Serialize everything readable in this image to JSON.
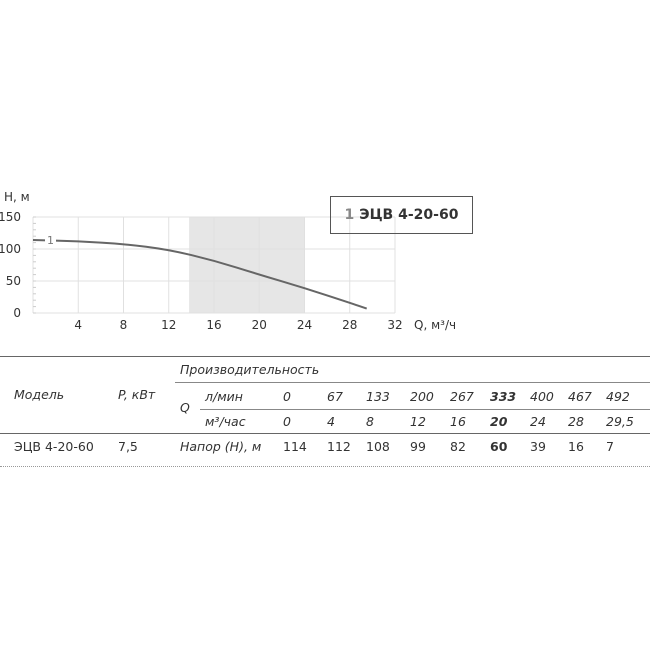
{
  "chart_data": {
    "type": "line",
    "ylabel": "H, м",
    "xlabel": "Q, м³/ч",
    "xlim": [
      0,
      32
    ],
    "ylim": [
      0,
      150
    ],
    "xticks": [
      4,
      8,
      12,
      16,
      20,
      24,
      28,
      32
    ],
    "yticks": [
      0,
      50,
      100,
      150
    ],
    "grid": true,
    "shaded_region": [
      13.8,
      24
    ],
    "series": [
      {
        "name": "ЭЦВ 4-20-60",
        "label": "1",
        "x": [
          0,
          4,
          8,
          12,
          16,
          20,
          24,
          28,
          29.5
        ],
        "y": [
          114,
          112,
          108,
          99,
          82,
          60,
          39,
          16,
          7
        ]
      }
    ],
    "legend": {
      "number": "1",
      "text": "ЭЦВ 4-20-60",
      "placement": "top-right"
    },
    "colors": {
      "curve": "#666666",
      "shade": "#e6e6e6",
      "grid": "#e0e0e0"
    }
  },
  "table": {
    "model_header": "Модель",
    "power_header": "P, кВт",
    "perf_header": "Производительность",
    "q_label": "Q",
    "lmin_label": "л/мин",
    "m3_label": "м³/час",
    "head_label": "Напор (H), м",
    "lmin": [
      "0",
      "67",
      "133",
      "200",
      "267",
      "333",
      "400",
      "467",
      "492"
    ],
    "m3": [
      "0",
      "4",
      "8",
      "12",
      "16",
      "20",
      "24",
      "28",
      "29,5"
    ],
    "head": [
      "114",
      "112",
      "108",
      "99",
      "82",
      "60",
      "39",
      "16",
      "7"
    ],
    "bold_index": 5,
    "model": "ЭЦВ 4-20-60",
    "power": "7,5"
  }
}
